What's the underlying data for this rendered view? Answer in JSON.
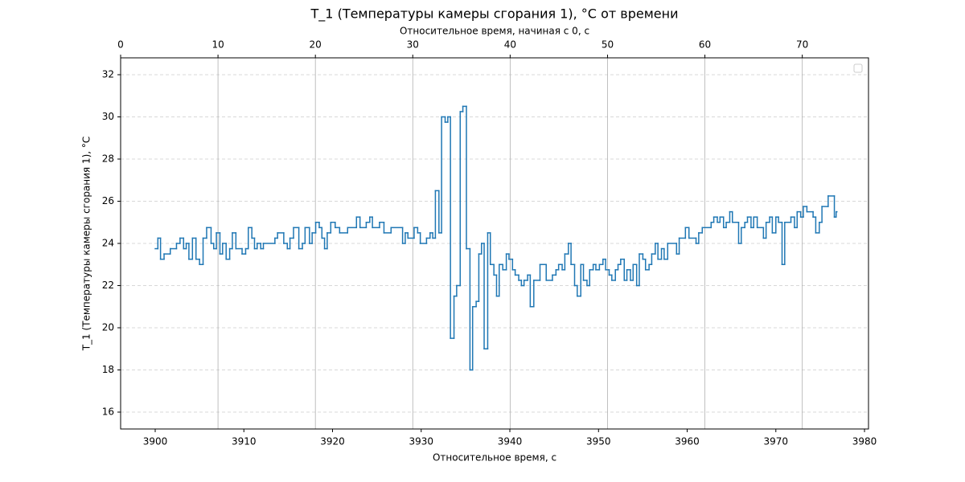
{
  "chart_data": {
    "type": "step",
    "title": "T_1 (Температуры камеры сгорания 1), °C от времени",
    "xlabel": "Относительное время, с",
    "x2label": "Относительное время, начиная с 0, с",
    "ylabel": "T_1 (Температуры камеры сгорания 1), °C",
    "xlim": [
      3896.1,
      3980.45
    ],
    "xticks": [
      3900,
      3910,
      3920,
      3930,
      3940,
      3950,
      3960,
      3970,
      3980
    ],
    "x2lim": [
      0,
      76.8
    ],
    "x2ticks": [
      0,
      10,
      20,
      30,
      40,
      50,
      60,
      70
    ],
    "ylim": [
      15.2,
      32.8
    ],
    "yticks": [
      16,
      18,
      20,
      22,
      24,
      26,
      28,
      30,
      32
    ],
    "grid": true,
    "legend": "upper right",
    "x": [
      3900.0,
      3900.3,
      3900.6,
      3901.0,
      3901.7,
      3902.4,
      3902.8,
      3903.2,
      3903.5,
      3903.8,
      3904.2,
      3904.6,
      3905.0,
      3905.4,
      3905.8,
      3906.3,
      3906.6,
      3906.9,
      3907.3,
      3907.6,
      3908.0,
      3908.4,
      3908.7,
      3909.1,
      3909.8,
      3910.2,
      3910.5,
      3910.9,
      3911.2,
      3911.5,
      3911.9,
      3912.2,
      3913.5,
      3913.8,
      3914.5,
      3914.9,
      3915.2,
      3915.6,
      3916.2,
      3916.6,
      3916.9,
      3917.4,
      3917.7,
      3918.1,
      3918.5,
      3918.8,
      3919.1,
      3919.4,
      3919.8,
      3920.3,
      3920.8,
      3921.7,
      3922.7,
      3923.1,
      3923.8,
      3924.2,
      3924.5,
      3925.3,
      3925.8,
      3926.6,
      3927.9,
      3928.2,
      3928.5,
      3929.2,
      3929.6,
      3929.9,
      3930.6,
      3931.0,
      3931.3,
      3931.6,
      3932.0,
      3932.3,
      3932.7,
      3933.0,
      3933.3,
      3933.7,
      3934.0,
      3934.4,
      3934.7,
      3935.1,
      3935.5,
      3935.8,
      3936.2,
      3936.5,
      3936.8,
      3937.1,
      3937.5,
      3937.8,
      3938.2,
      3938.5,
      3938.8,
      3939.2,
      3939.6,
      3939.9,
      3940.3,
      3940.6,
      3941.0,
      3941.3,
      3941.6,
      3942.0,
      3942.3,
      3942.7,
      3943.4,
      3944.1,
      3944.8,
      3945.2,
      3945.5,
      3945.9,
      3946.2,
      3946.6,
      3946.9,
      3947.3,
      3947.6,
      3948.0,
      3948.3,
      3948.7,
      3949.0,
      3949.4,
      3949.7,
      3950.1,
      3950.5,
      3950.8,
      3951.2,
      3951.5,
      3951.9,
      3952.2,
      3952.5,
      3952.9,
      3953.2,
      3953.6,
      3953.9,
      3954.3,
      3954.6,
      3955.0,
      3955.3,
      3955.7,
      3956.0,
      3956.4,
      3956.7,
      3957.1,
      3957.4,
      3957.8,
      3958.8,
      3959.1,
      3959.8,
      3960.2,
      3961.0,
      3961.3,
      3961.7,
      3962.7,
      3963.0,
      3963.4,
      3963.7,
      3964.1,
      3964.4,
      3964.8,
      3965.1,
      3965.8,
      3966.1,
      3966.5,
      3966.8,
      3967.2,
      3967.5,
      3967.9,
      3968.6,
      3968.9,
      3969.3,
      3969.6,
      3970.0,
      3970.3,
      3970.7,
      3971.0,
      3971.7,
      3972.1,
      3972.4,
      3972.8,
      3973.1,
      3973.5,
      3974.2,
      3974.5,
      3974.9,
      3975.2,
      3975.9,
      3976.6,
      3976.8
    ],
    "series": [
      {
        "color": "#1f77b4",
        "values": [
          23.75,
          24.25,
          23.25,
          23.5,
          23.75,
          24.0,
          24.25,
          23.75,
          24.0,
          23.25,
          24.25,
          23.25,
          23.0,
          24.25,
          24.75,
          24.0,
          23.75,
          24.5,
          23.5,
          24.0,
          23.25,
          23.75,
          24.5,
          23.75,
          23.5,
          23.75,
          24.75,
          24.25,
          23.75,
          24.0,
          23.75,
          24.0,
          24.25,
          24.5,
          24.0,
          23.75,
          24.25,
          24.75,
          23.75,
          24.0,
          24.75,
          24.0,
          24.5,
          25.0,
          24.75,
          24.25,
          23.75,
          24.5,
          25.0,
          24.75,
          24.5,
          24.75,
          25.25,
          24.75,
          25.0,
          25.25,
          24.75,
          25.0,
          24.5,
          24.75,
          24.0,
          24.5,
          24.25,
          24.75,
          24.5,
          24.0,
          24.25,
          24.5,
          24.25,
          26.5,
          24.5,
          30.0,
          29.75,
          30.0,
          19.5,
          21.5,
          22.0,
          30.25,
          30.5,
          23.75,
          18.0,
          21.0,
          21.25,
          23.5,
          24.0,
          19.0,
          24.5,
          23.0,
          22.5,
          21.5,
          23.0,
          22.75,
          23.5,
          23.25,
          22.75,
          22.5,
          22.25,
          22.0,
          22.25,
          22.5,
          21.0,
          22.25,
          23.0,
          22.25,
          22.5,
          22.75,
          23.0,
          22.75,
          23.5,
          24.0,
          23.0,
          22.0,
          21.5,
          23.0,
          22.25,
          22.0,
          22.75,
          23.0,
          22.75,
          23.0,
          23.25,
          22.75,
          22.5,
          22.25,
          22.75,
          23.0,
          23.25,
          22.25,
          22.75,
          22.25,
          23.0,
          22.0,
          23.5,
          23.25,
          22.75,
          23.0,
          23.5,
          24.0,
          23.25,
          23.75,
          23.25,
          24.0,
          23.5,
          24.25,
          24.75,
          24.25,
          24.0,
          24.5,
          24.75,
          25.0,
          25.25,
          25.0,
          25.25,
          24.75,
          25.0,
          25.5,
          25.0,
          24.0,
          24.75,
          25.0,
          25.25,
          24.75,
          25.25,
          24.75,
          24.25,
          25.0,
          25.25,
          24.5,
          25.25,
          25.0,
          23.0,
          25.0,
          25.25,
          24.75,
          25.5,
          25.25,
          25.75,
          25.5,
          25.25,
          24.5,
          25.0,
          25.75,
          26.25,
          25.25,
          25.5
        ]
      }
    ]
  }
}
